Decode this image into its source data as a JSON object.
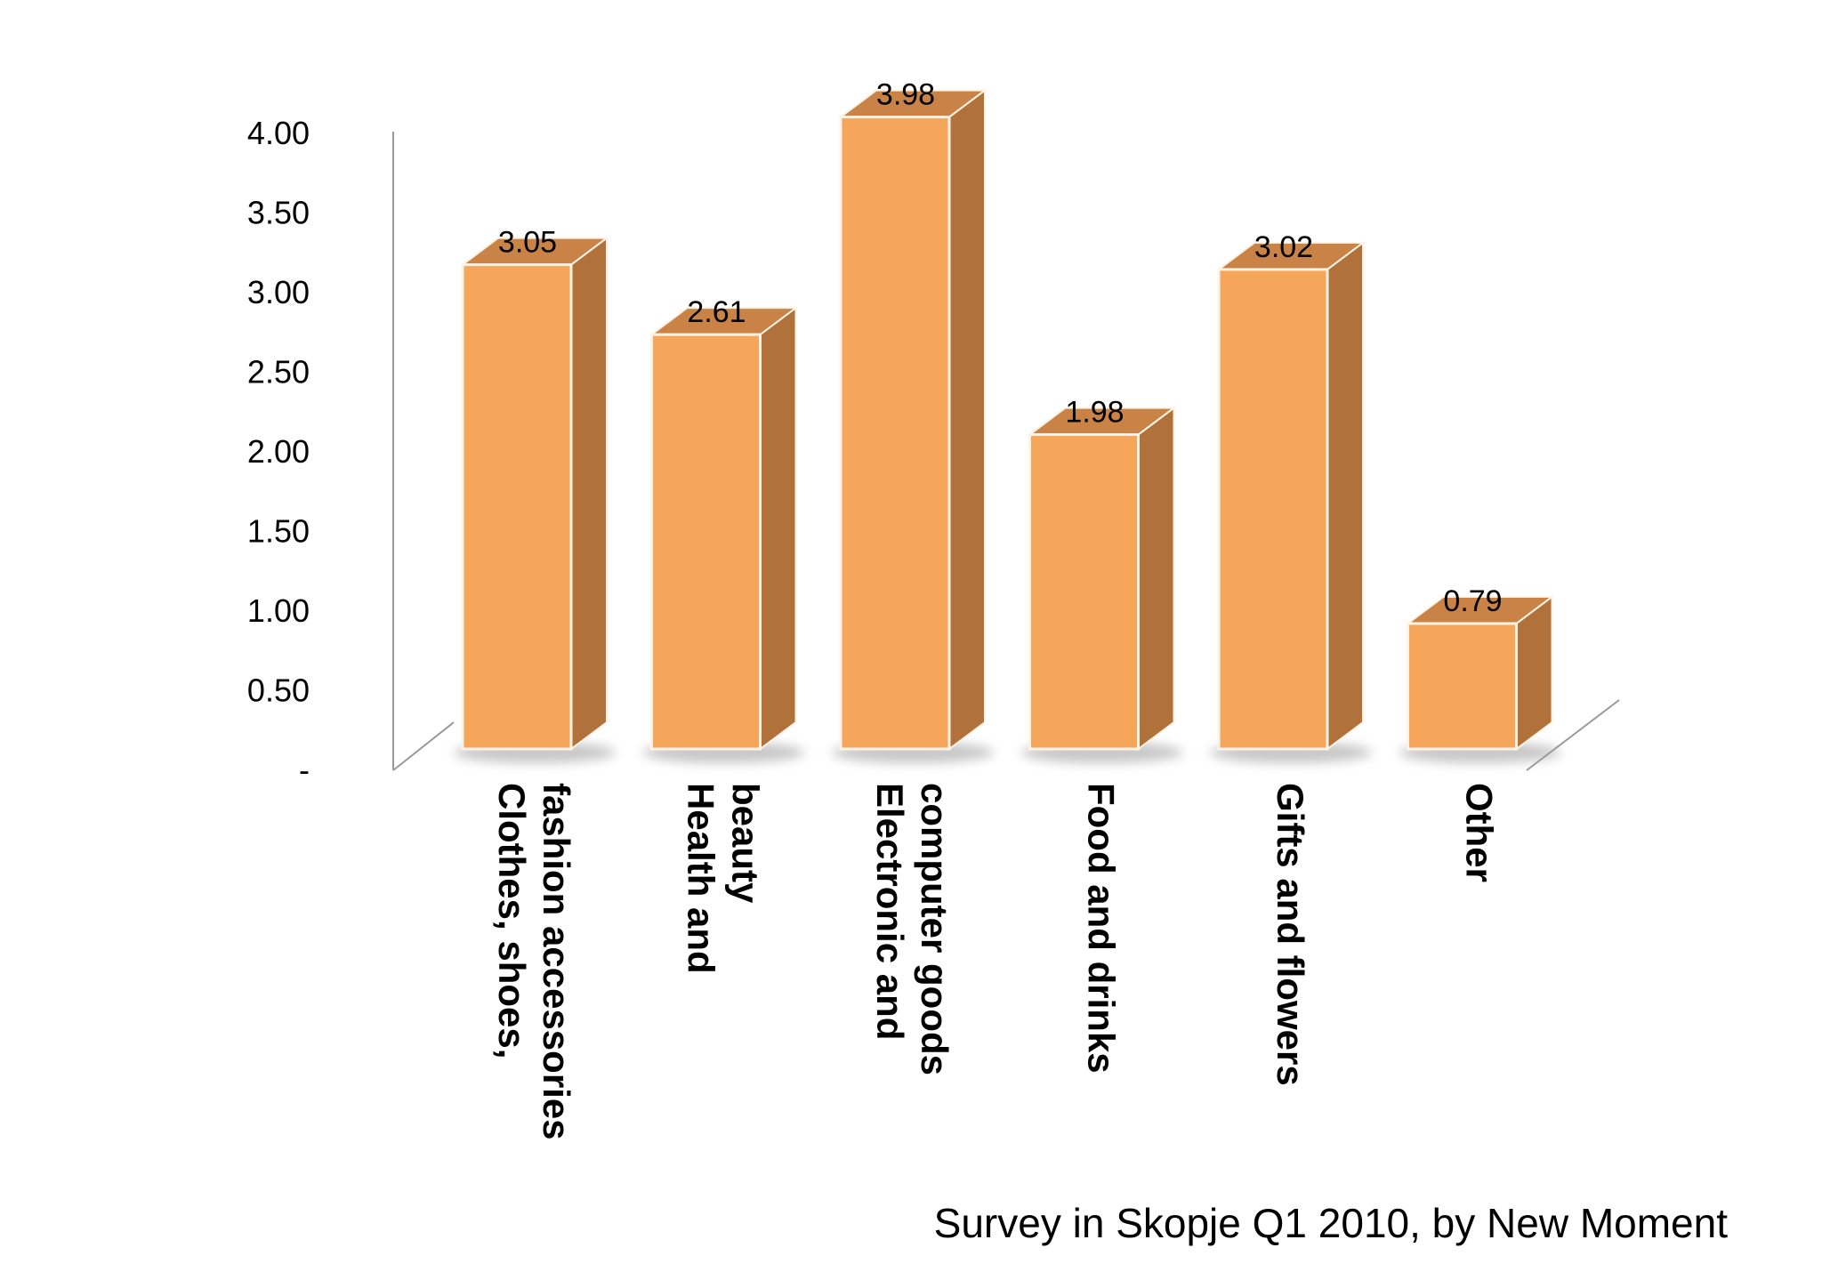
{
  "chart_data": {
    "type": "bar",
    "categories": [
      [
        "Clothes, shoes,",
        "fashion accessories"
      ],
      [
        "Health and",
        "beauty"
      ],
      [
        "Electronic and",
        "computer goods"
      ],
      [
        "Food and drinks"
      ],
      [
        "Gifts and flowers"
      ],
      [
        "Other"
      ]
    ],
    "values": [
      3.05,
      2.61,
      3.98,
      1.98,
      3.02,
      0.79
    ],
    "data_labels": [
      "3.05",
      "2.61",
      "3.98",
      "1.98",
      "3.02",
      "0.79"
    ],
    "y_ticks": [
      "-",
      "0.50",
      "1.00",
      "1.50",
      "2.00",
      "2.50",
      "3.00",
      "3.50",
      "4.00"
    ],
    "ylim": [
      0,
      4
    ],
    "three_d": true,
    "grid": false,
    "bar_colors": {
      "front": "#F5A65B",
      "side": "#B0723A",
      "top": "#C98347",
      "edge": "#FFF3E6",
      "shadow": "#9A9A9A"
    }
  },
  "footnote": "Survey in Skopje Q1 2010, by New Moment"
}
